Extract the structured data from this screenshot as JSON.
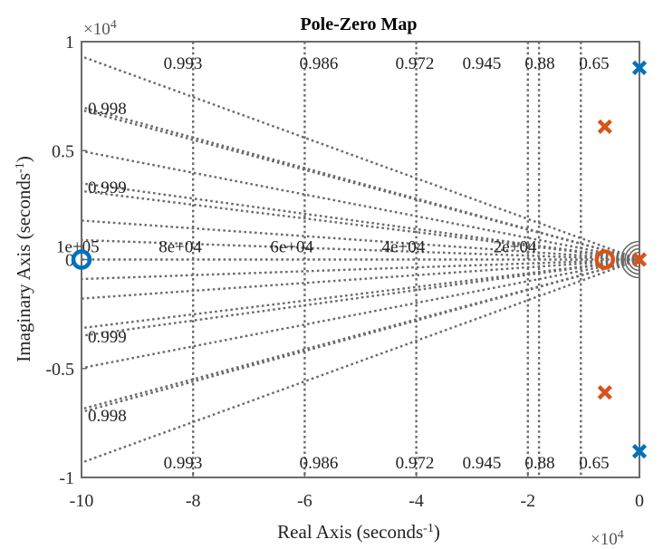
{
  "chart_data": {
    "type": "scatter",
    "title": "Pole-Zero Map",
    "xlabel": "Real Axis (seconds",
    "xlabel_sup": "-1",
    "ylabel": "Imaginary Axis (seconds",
    "ylabel_sup": "-1",
    "x_multiplier": "×10",
    "x_multiplier_exp": "4",
    "y_multiplier": "×10",
    "y_multiplier_exp": "4",
    "xlim": [
      -10,
      0
    ],
    "ylim": [
      -1,
      1
    ],
    "x_ticks": [
      {
        "value": -10,
        "label": "-10"
      },
      {
        "value": -8,
        "label": "-8"
      },
      {
        "value": -6,
        "label": "-6"
      },
      {
        "value": -4,
        "label": "-4"
      },
      {
        "value": -2,
        "label": "-2"
      },
      {
        "value": 0,
        "label": "0"
      }
    ],
    "y_ticks": [
      {
        "value": 1,
        "label": "1"
      },
      {
        "value": 0.5,
        "label": "0.5"
      },
      {
        "value": 0,
        "label": "0"
      },
      {
        "value": -0.5,
        "label": "-0.5"
      },
      {
        "value": -1,
        "label": "-1"
      }
    ],
    "damping_labels": [
      "0.993",
      "0.986",
      "0.972",
      "0.945",
      "0.88",
      "0.65"
    ],
    "damping_labels_left": [
      "0.998",
      "0.999"
    ],
    "natural_freq_labels": [
      {
        "x": -10,
        "label": "1e+05"
      },
      {
        "x": -8,
        "label": "8e+04"
      },
      {
        "x": -6,
        "label": "6e+04"
      },
      {
        "x": -4,
        "label": "4e+04"
      },
      {
        "x": -2,
        "label": "2e+04"
      }
    ],
    "series": [
      {
        "color": "#0072BD",
        "poles": [
          [
            0,
            0.88
          ],
          [
            0,
            -0.88
          ]
        ],
        "zeros": [
          [
            -10,
            0
          ]
        ]
      },
      {
        "color": "#D95319",
        "poles": [
          [
            -0.62,
            0.61
          ],
          [
            -0.62,
            -0.61
          ],
          [
            0,
            0
          ]
        ],
        "zeros": [
          [
            -0.62,
            0
          ]
        ]
      }
    ],
    "grid": true
  }
}
